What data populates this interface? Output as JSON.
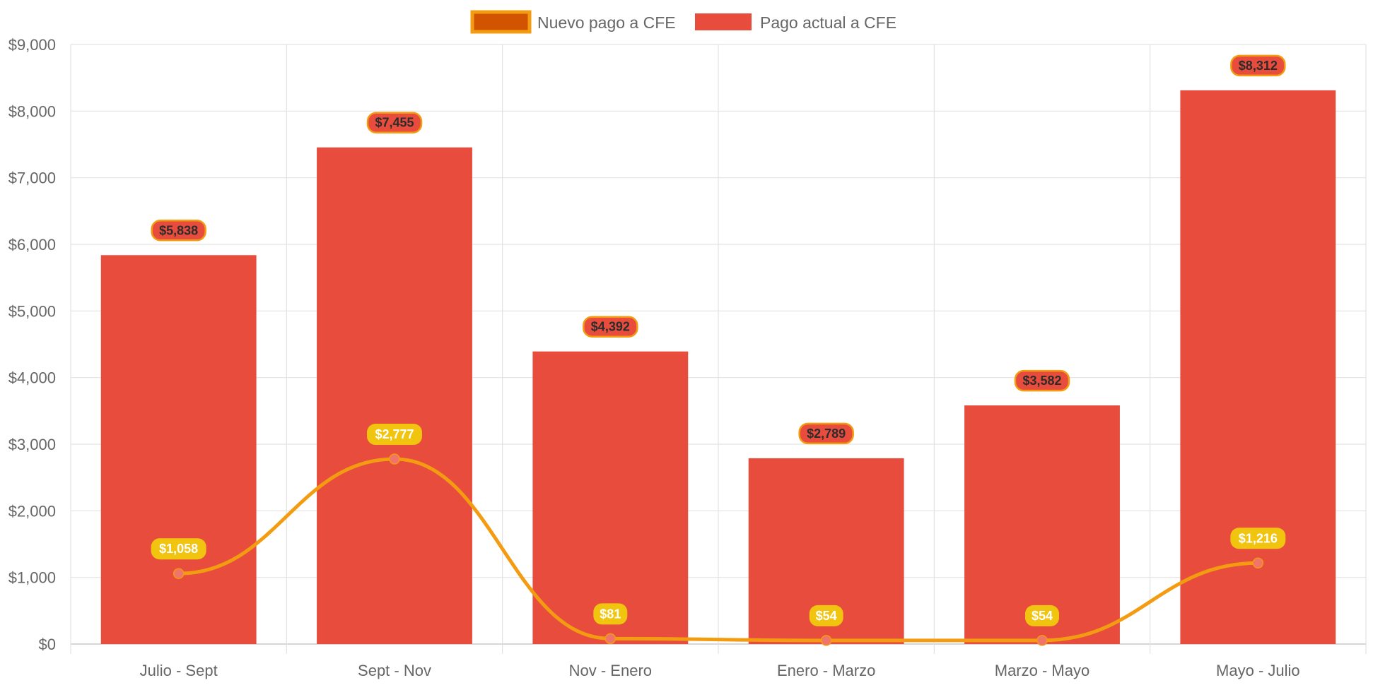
{
  "chart_data": {
    "type": "bar",
    "categories": [
      "Julio - Sept",
      "Sept - Nov",
      "Nov - Enero",
      "Enero - Marzo",
      "Marzo - Mayo",
      "Mayo - Julio"
    ],
    "series": [
      {
        "name": "Nuevo pago a CFE",
        "type": "line",
        "values": [
          1058,
          2777,
          81,
          54,
          54,
          1216
        ],
        "labels": [
          "$1,058",
          "$2,777",
          "$81",
          "$54",
          "$54",
          "$1,216"
        ],
        "color": "#f39c12",
        "legend_fill": "#d35400",
        "point_color": "#f0746b",
        "label_bg": "#f1c40f",
        "label_text_color": "#ffffff"
      },
      {
        "name": "Pago actual a CFE",
        "type": "bar",
        "values": [
          5838,
          7455,
          4392,
          2789,
          3582,
          8312
        ],
        "labels": [
          "$5,838",
          "$7,455",
          "$4,392",
          "$2,789",
          "$3,582",
          "$8,312"
        ],
        "color": "#e74c3c",
        "label_border": "#f39c12",
        "label_text_color": "#2c2c2c"
      }
    ],
    "y_ticks": [
      "$0",
      "$1,000",
      "$2,000",
      "$3,000",
      "$4,000",
      "$5,000",
      "$6,000",
      "$7,000",
      "$8,000",
      "$9,000"
    ],
    "ylim": [
      0,
      9000
    ],
    "grid": true,
    "legend_position": "top-center"
  }
}
